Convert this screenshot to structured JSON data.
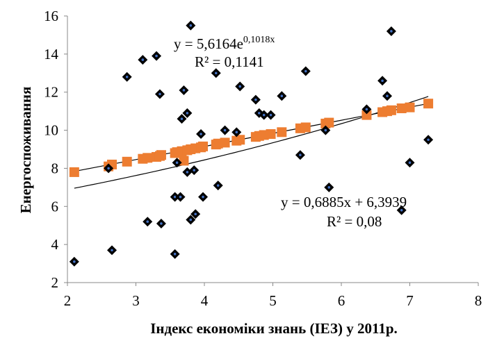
{
  "chart_data": {
    "type": "scatter",
    "title": "",
    "xlabel": "Індекс економіки знань (ІЕЗ) у 2011р.",
    "ylabel": "Енергоспоживання",
    "xlim": [
      2,
      8
    ],
    "ylim": [
      2,
      16
    ],
    "x_ticks": [
      "2",
      "3",
      "4",
      "5",
      "6",
      "7",
      "8"
    ],
    "y_ticks": [
      "2",
      "4",
      "6",
      "8",
      "10",
      "12",
      "14",
      "16"
    ],
    "grid": false,
    "legend": "none",
    "colors": {
      "observed_fill": "#000000",
      "observed_center": "#4472c4",
      "fitted": "#ed7d31",
      "trendline": "#000000"
    },
    "series": [
      {
        "marker": "diamond",
        "points": [
          [
            2.1,
            3.1
          ],
          [
            2.6,
            8.0
          ],
          [
            2.65,
            3.7
          ],
          [
            2.87,
            12.8
          ],
          [
            3.1,
            13.7
          ],
          [
            3.17,
            5.2
          ],
          [
            3.3,
            13.9
          ],
          [
            3.35,
            11.9
          ],
          [
            3.37,
            5.1
          ],
          [
            3.57,
            3.5
          ],
          [
            3.57,
            6.5
          ],
          [
            3.6,
            8.3
          ],
          [
            3.65,
            6.5
          ],
          [
            3.67,
            10.6
          ],
          [
            3.7,
            12.1
          ],
          [
            3.75,
            10.9
          ],
          [
            3.75,
            7.8
          ],
          [
            3.8,
            5.3
          ],
          [
            3.8,
            15.5
          ],
          [
            3.85,
            7.9
          ],
          [
            3.87,
            5.6
          ],
          [
            3.95,
            9.8
          ],
          [
            3.98,
            6.5
          ],
          [
            4.17,
            13.0
          ],
          [
            4.2,
            7.1
          ],
          [
            4.3,
            10.0
          ],
          [
            4.47,
            9.9
          ],
          [
            4.52,
            12.3
          ],
          [
            4.75,
            11.6
          ],
          [
            4.8,
            10.9
          ],
          [
            4.87,
            10.8
          ],
          [
            4.97,
            10.8
          ],
          [
            5.13,
            11.8
          ],
          [
            5.4,
            8.7
          ],
          [
            5.48,
            13.1
          ],
          [
            5.77,
            10.0
          ],
          [
            5.82,
            7.0
          ],
          [
            6.37,
            11.1
          ],
          [
            6.6,
            12.6
          ],
          [
            6.67,
            11.8
          ],
          [
            6.73,
            15.2
          ],
          [
            6.88,
            5.8
          ],
          [
            7.0,
            8.3
          ],
          [
            7.27,
            9.5
          ]
        ]
      },
      {
        "marker": "square",
        "points": [
          [
            2.1,
            7.8
          ],
          [
            2.6,
            8.1
          ],
          [
            2.65,
            8.2
          ],
          [
            2.87,
            8.35
          ],
          [
            3.1,
            8.5
          ],
          [
            3.17,
            8.55
          ],
          [
            3.3,
            8.6
          ],
          [
            3.35,
            8.65
          ],
          [
            3.37,
            8.7
          ],
          [
            3.57,
            8.8
          ],
          [
            3.6,
            8.85
          ],
          [
            3.67,
            8.9
          ],
          [
            3.7,
            8.4
          ],
          [
            3.75,
            8.95
          ],
          [
            3.8,
            9.0
          ],
          [
            3.87,
            9.05
          ],
          [
            3.95,
            9.1
          ],
          [
            3.98,
            9.15
          ],
          [
            4.17,
            9.25
          ],
          [
            4.2,
            9.3
          ],
          [
            4.3,
            9.35
          ],
          [
            4.47,
            9.45
          ],
          [
            4.52,
            9.5
          ],
          [
            4.75,
            9.65
          ],
          [
            4.8,
            9.7
          ],
          [
            4.87,
            9.75
          ],
          [
            4.97,
            9.8
          ],
          [
            5.13,
            9.9
          ],
          [
            5.4,
            10.1
          ],
          [
            5.48,
            10.15
          ],
          [
            5.77,
            10.35
          ],
          [
            5.82,
            10.4
          ],
          [
            6.37,
            10.8
          ],
          [
            6.6,
            10.95
          ],
          [
            6.67,
            11.0
          ],
          [
            6.73,
            11.05
          ],
          [
            6.88,
            11.15
          ],
          [
            7.0,
            11.2
          ],
          [
            7.27,
            11.4
          ]
        ]
      }
    ],
    "trendlines": [
      {
        "kind": "linear",
        "slope": 0.6885,
        "intercept": 6.3939,
        "x_range": [
          2.1,
          7.27
        ],
        "equation_parts": [
          "y = 0,6885x + 6,3939"
        ],
        "r2_text": "R² = 0,08"
      },
      {
        "kind": "exponential",
        "coefficient": 5.6164,
        "rate": 0.1018,
        "x_range": [
          2.1,
          7.27
        ],
        "equation_parts": [
          "y = 5,6164e",
          "0,1018x"
        ],
        "r2_text": "R² = 0,1141"
      }
    ]
  }
}
